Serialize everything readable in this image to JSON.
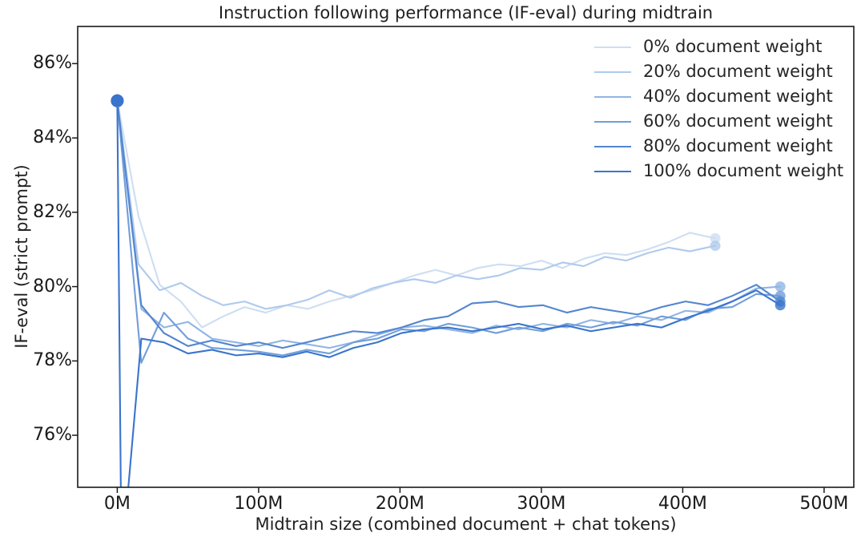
{
  "chart_data": {
    "type": "line",
    "title": "Instruction following performance (IF-eval) during midtrain",
    "xlabel": "Midtrain size (combined document + chat tokens)",
    "ylabel": "IF-eval (strict prompt)",
    "x_unit": "millions of tokens",
    "y_unit": "percent",
    "xlim": [
      -28,
      521
    ],
    "ylim": [
      74.6,
      87.0
    ],
    "grid": false,
    "xticks": {
      "values": [
        0,
        100,
        200,
        300,
        400,
        500
      ],
      "labels": [
        "0M",
        "100M",
        "200M",
        "300M",
        "400M",
        "500M"
      ]
    },
    "yticks": {
      "values": [
        76,
        78,
        80,
        82,
        84,
        86
      ],
      "labels": [
        "76%",
        "78%",
        "80%",
        "82%",
        "84%",
        "86%"
      ]
    },
    "legend_position": "upper right",
    "marker_note": "filled circle markers on first and last checkpoint of each series",
    "series": [
      {
        "name": "0% document weight",
        "color": "#cedef2",
        "x": [
          0,
          15,
          30,
          45,
          60,
          75,
          90,
          105,
          120,
          135,
          150,
          165,
          180,
          195,
          210,
          225,
          240,
          255,
          270,
          285,
          300,
          315,
          330,
          345,
          360,
          375,
          390,
          405,
          423
        ],
        "y": [
          85.0,
          81.9,
          80.05,
          79.6,
          78.9,
          79.2,
          79.45,
          79.3,
          79.5,
          79.4,
          79.6,
          79.75,
          79.9,
          80.1,
          80.3,
          80.45,
          80.3,
          80.5,
          80.6,
          80.55,
          80.7,
          80.5,
          80.75,
          80.9,
          80.85,
          81.0,
          81.2,
          81.45,
          81.3
        ]
      },
      {
        "name": "20% document weight",
        "color": "#afcaec",
        "x": [
          0,
          15,
          30,
          45,
          60,
          75,
          90,
          105,
          120,
          135,
          150,
          165,
          180,
          195,
          210,
          225,
          240,
          255,
          270,
          285,
          300,
          315,
          330,
          345,
          360,
          375,
          390,
          405,
          423
        ],
        "y": [
          85.0,
          80.6,
          79.9,
          80.1,
          79.75,
          79.5,
          79.6,
          79.4,
          79.5,
          79.65,
          79.9,
          79.7,
          79.95,
          80.1,
          80.2,
          80.1,
          80.3,
          80.2,
          80.3,
          80.5,
          80.45,
          80.65,
          80.55,
          80.8,
          80.7,
          80.9,
          81.05,
          80.95,
          81.1
        ]
      },
      {
        "name": "40% document weight",
        "color": "#90b5e4",
        "x": [
          0,
          17,
          33,
          50,
          67,
          84,
          100,
          117,
          134,
          150,
          167,
          184,
          201,
          217,
          234,
          251,
          268,
          284,
          301,
          318,
          335,
          351,
          368,
          385,
          402,
          418,
          435,
          452,
          469
        ],
        "y": [
          85.0,
          79.4,
          78.9,
          79.05,
          78.6,
          78.5,
          78.4,
          78.55,
          78.45,
          78.35,
          78.5,
          78.7,
          78.9,
          78.95,
          78.85,
          78.75,
          78.95,
          78.85,
          79.0,
          78.9,
          79.1,
          79.0,
          79.2,
          79.1,
          79.35,
          79.3,
          79.6,
          79.95,
          80.0
        ]
      },
      {
        "name": "60% document weight",
        "color": "#719eda",
        "x": [
          0,
          17,
          33,
          50,
          67,
          84,
          100,
          117,
          134,
          150,
          167,
          184,
          201,
          217,
          234,
          251,
          268,
          284,
          301,
          318,
          335,
          351,
          368,
          385,
          402,
          418,
          435,
          452,
          469
        ],
        "y": [
          85.0,
          77.95,
          79.3,
          78.6,
          78.35,
          78.3,
          78.25,
          78.15,
          78.3,
          78.2,
          78.5,
          78.6,
          78.85,
          78.8,
          79.0,
          78.9,
          78.75,
          78.9,
          78.8,
          79.0,
          78.9,
          79.05,
          78.95,
          79.2,
          79.1,
          79.4,
          79.45,
          79.8,
          79.75
        ]
      },
      {
        "name": "80% document weight",
        "color": "#5386cf",
        "x": [
          0,
          17,
          33,
          50,
          67,
          84,
          100,
          117,
          134,
          150,
          167,
          184,
          201,
          217,
          234,
          251,
          268,
          284,
          301,
          318,
          335,
          351,
          368,
          385,
          402,
          418,
          435,
          452,
          469
        ],
        "y": [
          85.0,
          79.5,
          78.75,
          78.4,
          78.55,
          78.4,
          78.5,
          78.35,
          78.5,
          78.65,
          78.8,
          78.75,
          78.9,
          79.1,
          79.2,
          79.55,
          79.6,
          79.45,
          79.5,
          79.3,
          79.45,
          79.35,
          79.25,
          79.45,
          79.6,
          79.5,
          79.75,
          80.05,
          79.6
        ]
      },
      {
        "name": "100% document weight",
        "color": "#3a74cc",
        "x": [
          0,
          3,
          17,
          33,
          50,
          67,
          84,
          100,
          117,
          134,
          150,
          167,
          184,
          201,
          217,
          234,
          251,
          268,
          284,
          301,
          318,
          335,
          351,
          368,
          385,
          402,
          418,
          435,
          452,
          469
        ],
        "y": [
          85.0,
          72.5,
          78.6,
          78.5,
          78.2,
          78.3,
          78.15,
          78.2,
          78.1,
          78.25,
          78.1,
          78.35,
          78.5,
          78.75,
          78.85,
          78.9,
          78.8,
          78.9,
          79.0,
          78.85,
          78.95,
          78.8,
          78.9,
          79.0,
          78.9,
          79.15,
          79.35,
          79.6,
          79.9,
          79.5
        ]
      }
    ]
  }
}
